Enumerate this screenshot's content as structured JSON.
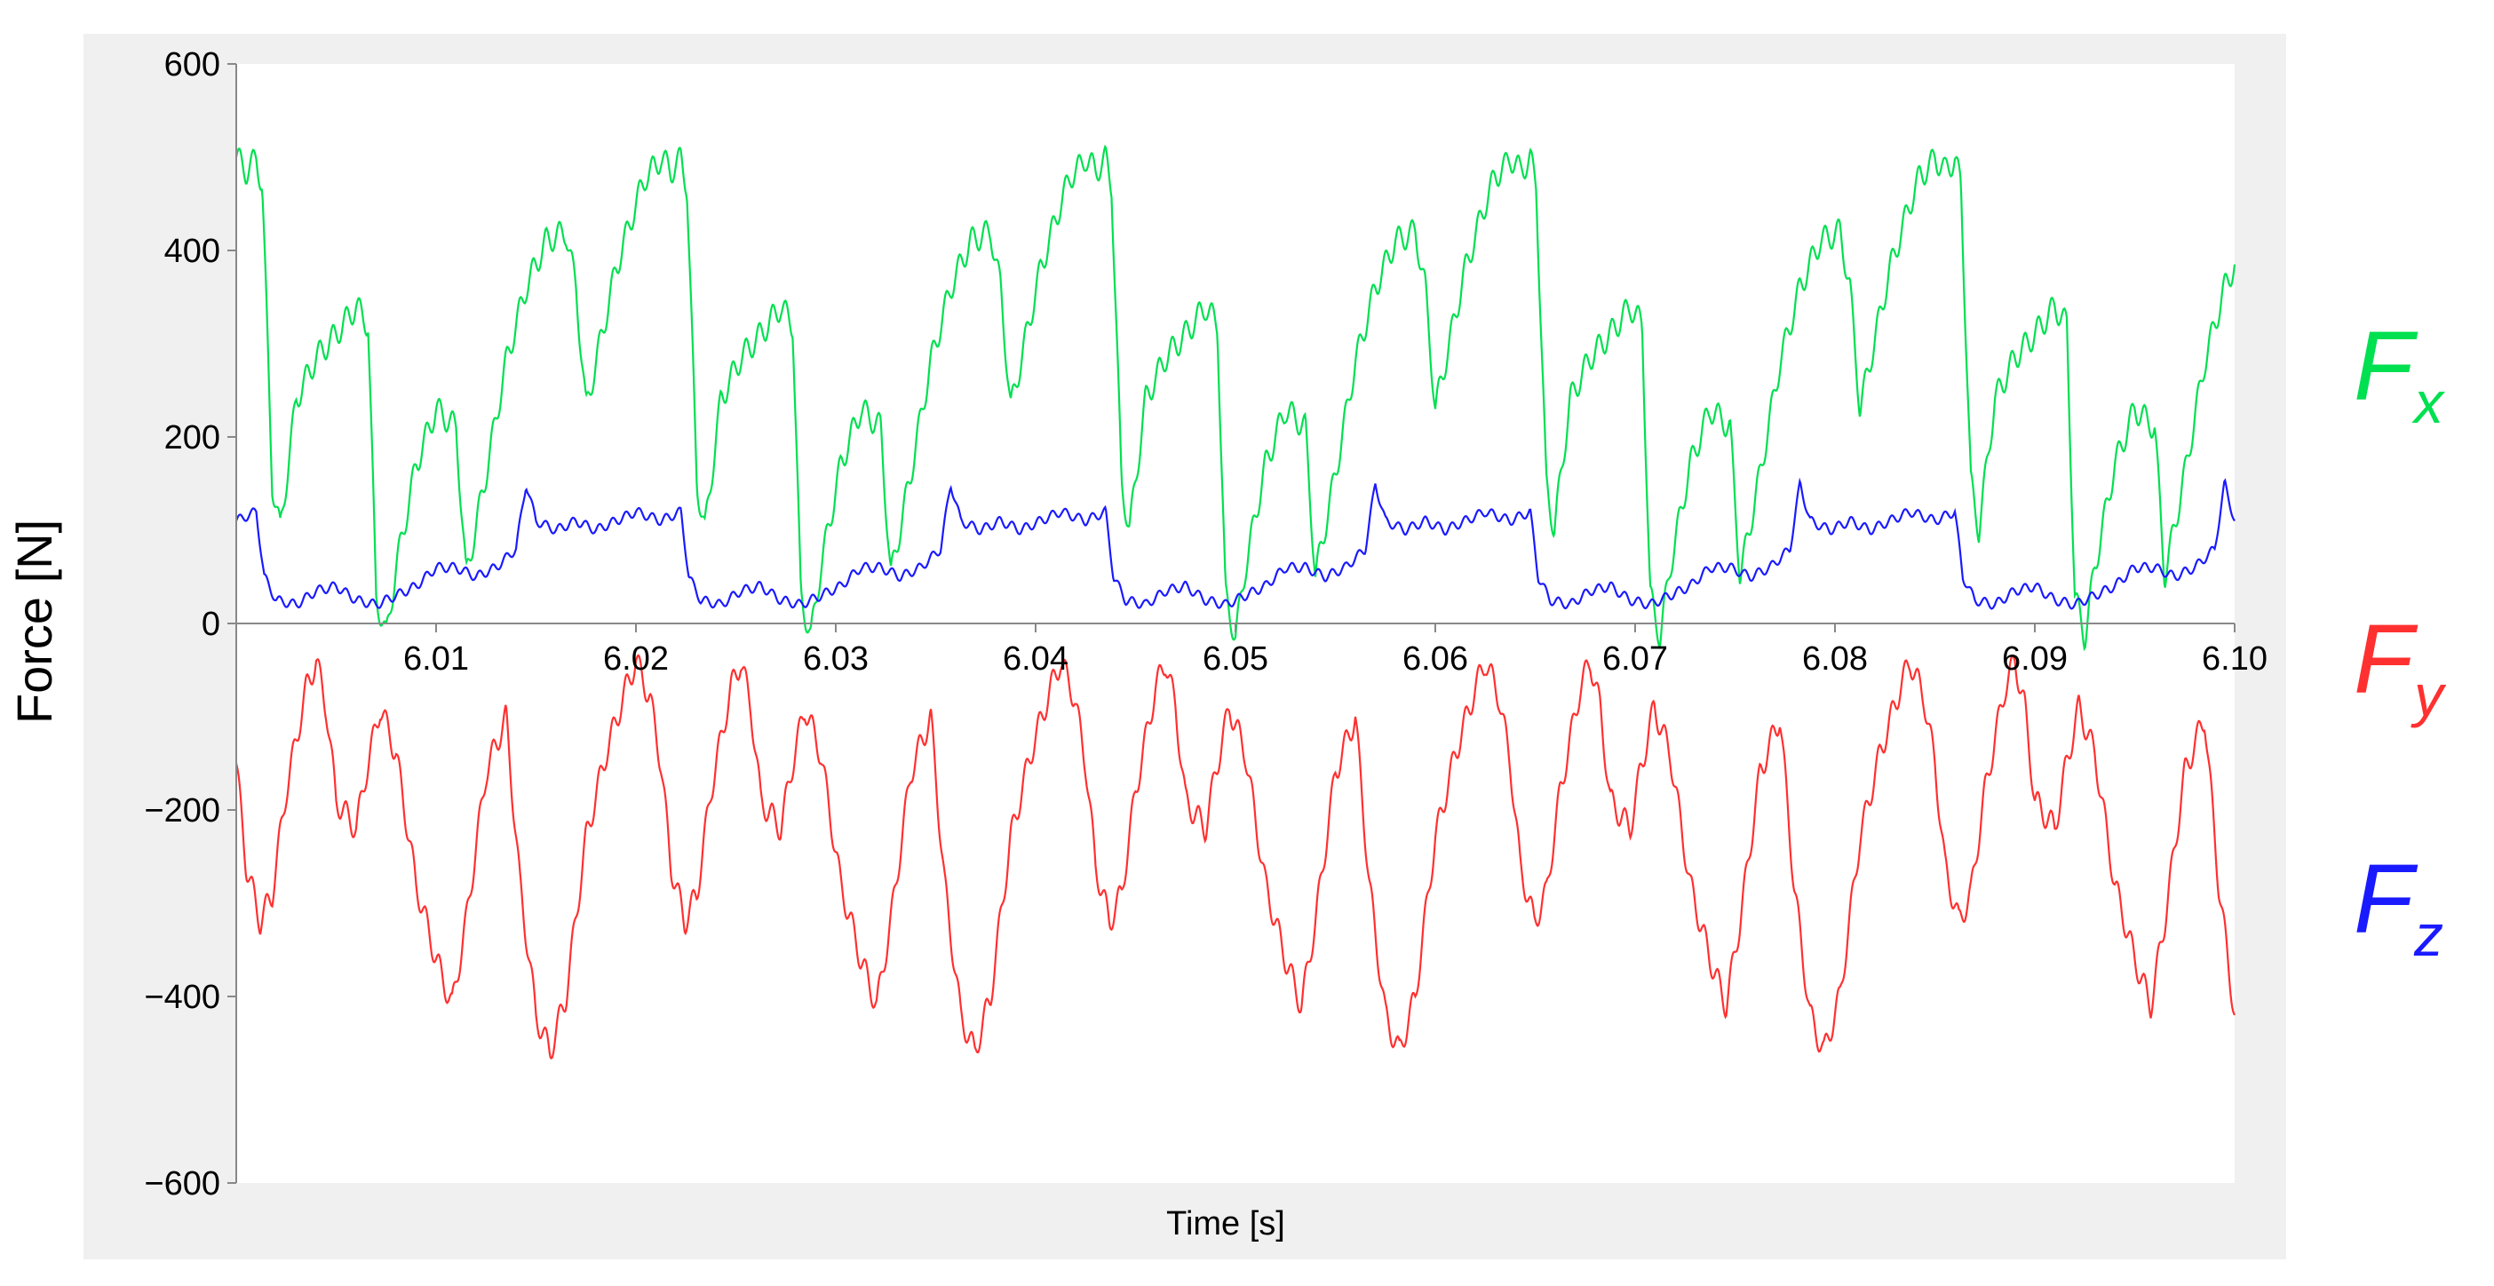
{
  "chart_data": {
    "type": "line",
    "title": "",
    "xlabel": "Time [s]",
    "ylabel": "Force [N]",
    "xlim": [
      6.0,
      6.1
    ],
    "ylim": [
      -600,
      600
    ],
    "grid": false,
    "x_ticks": [
      6.01,
      6.02,
      6.03,
      6.04,
      6.05,
      6.06,
      6.07,
      6.08,
      6.09,
      6.1
    ],
    "x_tick_labels": [
      "6.01",
      "6.02",
      "6.03",
      "6.04",
      "6.05",
      "6.06",
      "6.07",
      "6.08",
      "6.09",
      "6.10"
    ],
    "y_ticks": [
      600,
      400,
      200,
      0,
      -200,
      -400,
      -600
    ],
    "y_tick_labels": [
      "600",
      "400",
      "200",
      "0",
      "−200",
      "−400",
      "−600"
    ],
    "legend_placement": "right",
    "period": 0.02125,
    "series": [
      {
        "name": "Fx",
        "legend_main": "F",
        "legend_sub": "x",
        "color": "#00e050",
        "cycle": [
          [
            0.0,
            500
          ],
          [
            0.0005,
            485
          ],
          [
            0.001,
            498
          ],
          [
            0.0013,
            470
          ],
          [
            0.0018,
            150
          ],
          [
            0.0022,
            100
          ],
          [
            0.003,
            240
          ],
          [
            0.004,
            285
          ],
          [
            0.005,
            310
          ],
          [
            0.006,
            340
          ],
          [
            0.0066,
            320
          ],
          [
            0.007,
            30
          ],
          [
            0.0075,
            -15
          ],
          [
            0.008,
            60
          ],
          [
            0.009,
            170
          ],
          [
            0.01,
            230
          ],
          [
            0.011,
            210
          ],
          [
            0.0115,
            50
          ],
          [
            0.0125,
            160
          ],
          [
            0.0135,
            280
          ],
          [
            0.0145,
            360
          ],
          [
            0.0155,
            410
          ],
          [
            0.0165,
            420
          ],
          [
            0.017,
            360
          ],
          [
            0.0175,
            230
          ],
          [
            0.018,
            280
          ],
          [
            0.019,
            380
          ],
          [
            0.02,
            450
          ],
          [
            0.0205,
            480
          ],
          [
            0.021,
            490
          ],
          [
            0.02125,
            500
          ]
        ]
      },
      {
        "name": "Fy",
        "legend_main": "F",
        "legend_sub": "y",
        "color": "#ff3030",
        "cycle": [
          [
            0.0,
            -150
          ],
          [
            0.0005,
            -260
          ],
          [
            0.0012,
            -320
          ],
          [
            0.0018,
            -290
          ],
          [
            0.0025,
            -180
          ],
          [
            0.0035,
            -70
          ],
          [
            0.004,
            -40
          ],
          [
            0.0045,
            -90
          ],
          [
            0.005,
            -190
          ],
          [
            0.006,
            -220
          ],
          [
            0.0065,
            -160
          ],
          [
            0.0072,
            -90
          ],
          [
            0.008,
            -140
          ],
          [
            0.009,
            -280
          ],
          [
            0.01,
            -360
          ],
          [
            0.0108,
            -410
          ],
          [
            0.0115,
            -320
          ],
          [
            0.0125,
            -160
          ],
          [
            0.0135,
            -100
          ],
          [
            0.0142,
            -280
          ],
          [
            0.015,
            -420
          ],
          [
            0.0157,
            -460
          ],
          [
            0.0165,
            -400
          ],
          [
            0.0175,
            -230
          ],
          [
            0.0185,
            -140
          ],
          [
            0.0195,
            -70
          ],
          [
            0.02,
            -40
          ],
          [
            0.0207,
            -80
          ],
          [
            0.02125,
            -150
          ]
        ]
      },
      {
        "name": "Fz",
        "legend_main": "F",
        "legend_sub": "z",
        "color": "#1a1aff",
        "cycle": [
          [
            0.0,
            110
          ],
          [
            0.001,
            120
          ],
          [
            0.0014,
            50
          ],
          [
            0.002,
            25
          ],
          [
            0.003,
            20
          ],
          [
            0.004,
            35
          ],
          [
            0.005,
            40
          ],
          [
            0.006,
            25
          ],
          [
            0.007,
            20
          ],
          [
            0.008,
            30
          ],
          [
            0.009,
            40
          ],
          [
            0.01,
            60
          ],
          [
            0.011,
            60
          ],
          [
            0.012,
            50
          ],
          [
            0.013,
            60
          ],
          [
            0.014,
            80
          ],
          [
            0.0145,
            150
          ],
          [
            0.015,
            110
          ],
          [
            0.016,
            100
          ],
          [
            0.017,
            110
          ],
          [
            0.018,
            100
          ],
          [
            0.019,
            110
          ],
          [
            0.02,
            120
          ],
          [
            0.02125,
            110
          ]
        ]
      }
    ]
  }
}
